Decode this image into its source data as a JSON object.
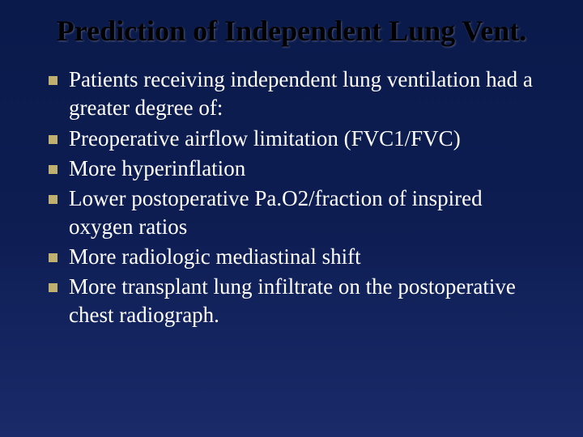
{
  "slide": {
    "title": "Prediction of Independent Lung Vent.",
    "background_gradient": [
      "#0a1a4a",
      "#0d1d52",
      "#1a2a6a"
    ],
    "title_color": "#000000",
    "title_fontsize": 36,
    "body_color": "#ffffff",
    "body_fontsize": 27,
    "bullet_marker_color": "#c0b070",
    "bullet_marker_size": 11,
    "bullets": [
      "Patients receiving independent lung ventilation had a greater degree of:",
      "Preoperative airflow limitation (FVC1/FVC)",
      "More hyperinflation",
      "Lower postoperative Pa.O2/fraction of inspired oxygen ratios",
      "More radiologic mediastinal shift",
      "More transplant lung infiltrate on the postoperative chest radiograph."
    ]
  }
}
